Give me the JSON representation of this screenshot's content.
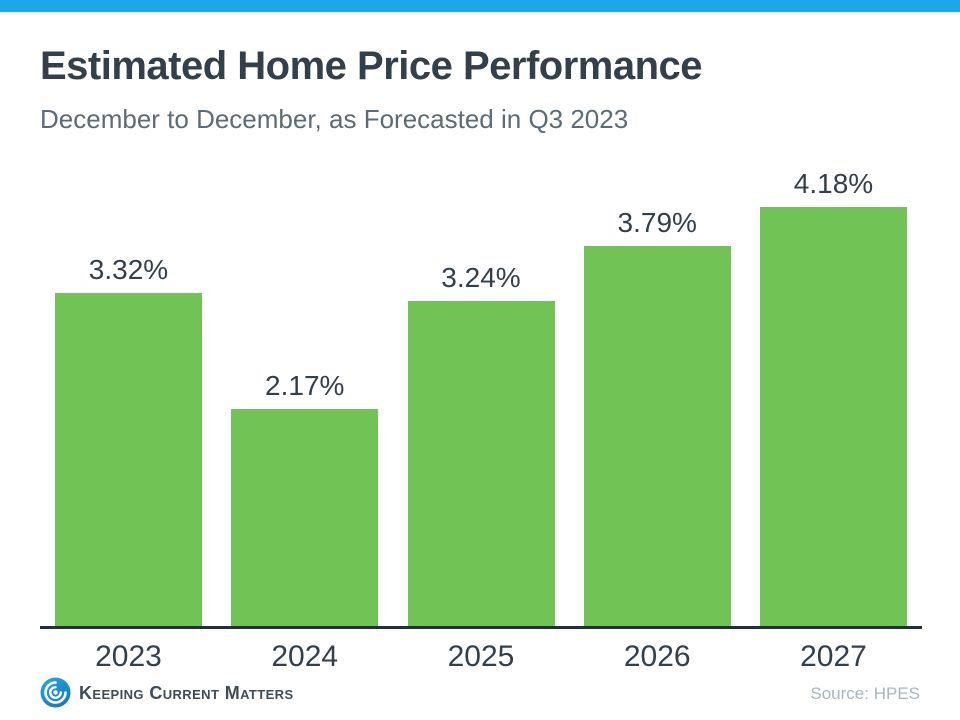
{
  "header": {
    "title": "Estimated Home Price Performance",
    "subtitle": "December to December, as Forecasted in Q3 2023"
  },
  "chart_data": {
    "type": "bar",
    "categories": [
      "2023",
      "2024",
      "2025",
      "2026",
      "2027"
    ],
    "values": [
      3.32,
      2.17,
      3.24,
      3.79,
      4.18
    ],
    "data_labels": [
      "3.32%",
      "2.17%",
      "3.24%",
      "3.79%",
      "4.18%"
    ],
    "title": "Estimated Home Price Performance",
    "subtitle": "December to December, as Forecasted in Q3 2023",
    "xlabel": "",
    "ylabel": "",
    "ylim": [
      0,
      4.65
    ],
    "grid": false,
    "legend": false,
    "bar_color": "#71C355"
  },
  "footer": {
    "logo_text": "Keeping Current Matters",
    "logo_icon": "kcm-swirl-icon",
    "source": "Source: HPES"
  },
  "colors": {
    "top_bar_blue": "#1BA8E8",
    "bar_green": "#71C355",
    "title_dark": "#333F4B",
    "subtitle_gray": "#5C6B75",
    "axis_dark": "#222F38",
    "logo_text_dark": "#3E4C57",
    "logo_blue": "#29ABE2",
    "logo_blue_dark": "#1878BE",
    "source_gray": "#A9B6BD"
  }
}
